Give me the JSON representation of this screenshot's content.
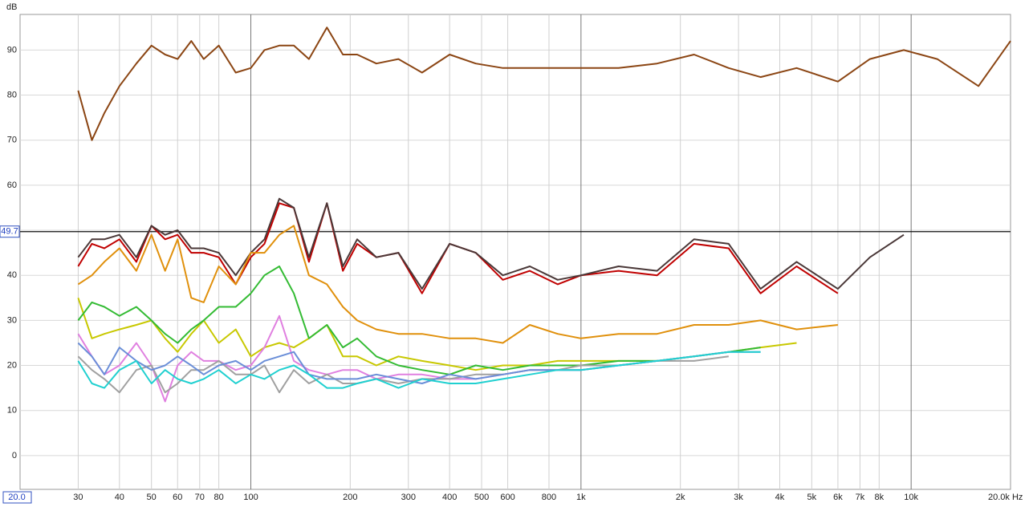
{
  "chart_data": {
    "type": "line",
    "y_unit_label": "dB",
    "x": [
      30,
      33,
      36,
      40,
      45,
      50,
      55,
      60,
      66,
      72,
      80,
      90,
      100,
      110,
      122,
      135,
      150,
      170,
      190,
      210,
      240,
      280,
      330,
      400,
      480,
      580,
      700,
      850,
      1000,
      1300,
      1700,
      2200,
      2800,
      3500,
      4500,
      6000,
      7500,
      9500,
      12000,
      16000,
      20000
    ],
    "series": [
      {
        "color": "#8b4513",
        "values": [
          81,
          70,
          76,
          82,
          87,
          91,
          89,
          88,
          92,
          88,
          91,
          85,
          86,
          90,
          91,
          91,
          88,
          95,
          89,
          89,
          87,
          88,
          85,
          89,
          87,
          86,
          86,
          86,
          86,
          86,
          87,
          89,
          86,
          84,
          86,
          83,
          88,
          90,
          88,
          82,
          92
        ]
      },
      {
        "color": "#c00000",
        "values": [
          42,
          47,
          46,
          48,
          43,
          51,
          48,
          49,
          45,
          45,
          44,
          38,
          44,
          47,
          56,
          55,
          43,
          56,
          41,
          47,
          44,
          45,
          36,
          47,
          45,
          39,
          41,
          38,
          40,
          41,
          40,
          47,
          46,
          36,
          42,
          36,
          null,
          null,
          null,
          null,
          null
        ]
      },
      {
        "color": "#4a3838",
        "values": [
          44,
          48,
          48,
          49,
          44,
          51,
          49,
          50,
          46,
          46,
          45,
          40,
          45,
          48,
          57,
          55,
          44,
          56,
          42,
          48,
          44,
          45,
          37,
          47,
          45,
          40,
          42,
          39,
          40,
          42,
          41,
          48,
          47,
          37,
          43,
          37,
          44,
          49,
          null,
          null,
          null
        ]
      },
      {
        "color": "#e0900c",
        "values": [
          38,
          40,
          43,
          46,
          41,
          49,
          41,
          48,
          35,
          34,
          42,
          38,
          45,
          45,
          49,
          51,
          40,
          38,
          33,
          30,
          28,
          27,
          27,
          26,
          26,
          25,
          29,
          27,
          26,
          27,
          27,
          29,
          29,
          30,
          28,
          29,
          null,
          null,
          null,
          null,
          null
        ]
      },
      {
        "color": "#c8c800",
        "values": [
          35,
          26,
          27,
          28,
          29,
          30,
          26,
          23,
          27,
          30,
          25,
          28,
          22,
          24,
          25,
          24,
          26,
          29,
          22,
          22,
          20,
          22,
          21,
          20,
          19,
          20,
          20,
          21,
          21,
          21,
          21,
          22,
          23,
          24,
          25,
          null,
          null,
          null,
          null,
          null,
          null
        ]
      },
      {
        "color": "#33bb33",
        "values": [
          30,
          34,
          33,
          31,
          33,
          30,
          27,
          25,
          28,
          30,
          33,
          33,
          36,
          40,
          42,
          36,
          26,
          29,
          24,
          26,
          22,
          20,
          19,
          18,
          20,
          19,
          20,
          20,
          20,
          21,
          21,
          22,
          23,
          24,
          null,
          null,
          null,
          null,
          null,
          null,
          null
        ]
      },
      {
        "color": "#e080e0",
        "values": [
          27,
          22,
          18,
          20,
          25,
          20,
          12,
          20,
          23,
          21,
          21,
          19,
          20,
          24,
          31,
          21,
          19,
          18,
          19,
          19,
          17,
          18,
          18,
          17,
          17,
          18,
          19,
          19,
          19,
          20,
          21,
          22,
          23,
          null,
          null,
          null,
          null,
          null,
          null,
          null,
          null
        ]
      },
      {
        "color": "#a0a0a0",
        "values": [
          22,
          19,
          17,
          14,
          19,
          20,
          14,
          16,
          19,
          19,
          21,
          18,
          18,
          20,
          14,
          19,
          16,
          18,
          16,
          16,
          17,
          16,
          17,
          17,
          18,
          18,
          19,
          19,
          20,
          20,
          21,
          21,
          22,
          null,
          null,
          null,
          null,
          null,
          null,
          null,
          null
        ]
      },
      {
        "color": "#6a8ed8",
        "values": [
          25,
          22,
          18,
          24,
          21,
          19,
          20,
          22,
          20,
          18,
          20,
          21,
          19,
          21,
          22,
          23,
          18,
          17,
          17,
          17,
          18,
          17,
          16,
          18,
          17,
          18,
          19,
          19,
          19,
          20,
          21,
          22,
          23,
          23,
          null,
          null,
          null,
          null,
          null,
          null,
          null
        ]
      },
      {
        "color": "#20d0d0",
        "values": [
          21,
          16,
          15,
          19,
          21,
          16,
          19,
          17,
          16,
          17,
          19,
          16,
          18,
          17,
          19,
          20,
          18,
          15,
          15,
          16,
          17,
          15,
          17,
          16,
          16,
          17,
          18,
          19,
          19,
          20,
          21,
          22,
          23,
          23,
          null,
          null,
          null,
          null,
          null,
          null,
          null
        ]
      }
    ],
    "xlim": [
      20,
      20000
    ],
    "log_x": true,
    "xticks": [
      {
        "value": 20,
        "label": "20.0"
      },
      30,
      40,
      50,
      60,
      70,
      80,
      100,
      200,
      300,
      400,
      500,
      600,
      800,
      {
        "value": 1000,
        "label": "1k"
      },
      {
        "value": 2000,
        "label": "2k"
      },
      {
        "value": 3000,
        "label": "3k"
      },
      {
        "value": 4000,
        "label": "4k"
      },
      {
        "value": 5000,
        "label": "5k"
      },
      {
        "value": 6000,
        "label": "6k"
      },
      {
        "value": 7000,
        "label": "7k"
      },
      {
        "value": 8000,
        "label": "8k"
      },
      {
        "value": 10000,
        "label": "10k"
      },
      {
        "value": 20000,
        "label": "20.0k Hz"
      }
    ],
    "ylim": [
      -7.5,
      97.9
    ],
    "yticks": [
      0,
      10,
      20,
      30,
      40,
      50,
      60,
      70,
      80,
      90
    ],
    "cursor_y": 49.7,
    "grid": true
  }
}
